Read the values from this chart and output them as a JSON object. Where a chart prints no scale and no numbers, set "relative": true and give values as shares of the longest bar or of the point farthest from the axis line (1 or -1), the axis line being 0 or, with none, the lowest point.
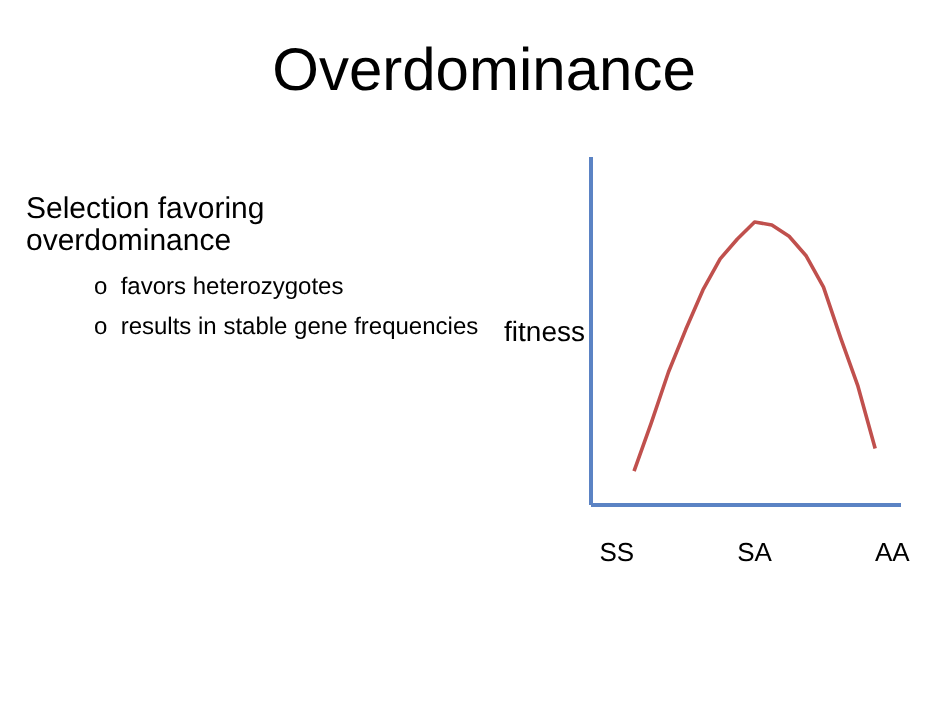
{
  "chart_data": {
    "type": "line",
    "title": "Overdominance",
    "annotations": [
      "Selection favoring\noverdominance",
      "o  favors heterozygotes",
      "o  results in stable gene frequencies"
    ],
    "ylabel": "fitness",
    "relative": true,
    "categories": [
      "SS",
      null,
      null,
      null,
      null,
      null,
      null,
      null,
      "SA",
      null,
      null,
      null,
      null,
      null,
      null,
      null,
      "AA"
    ],
    "series": [
      {
        "color": "#c0504d",
        "values": [
          null,
          0.12,
          0.29,
          0.47,
          0.62,
          0.76,
          0.87,
          0.94,
          1.0,
          0.99,
          0.95,
          0.88,
          0.77,
          0.59,
          0.42,
          0.2,
          null
        ]
      }
    ],
    "grid": false
  }
}
